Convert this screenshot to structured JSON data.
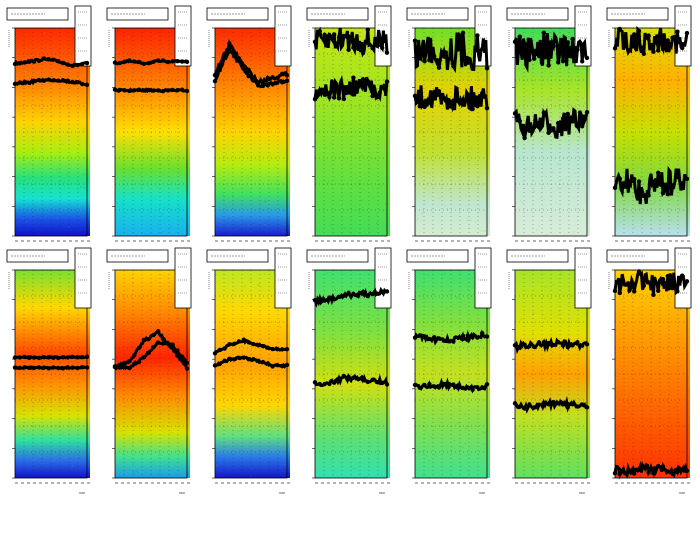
{
  "footer_text": "",
  "chart_data": [
    {
      "type": "heatmap",
      "colormap": "rainbow",
      "grid": true,
      "row": 0,
      "col": 0,
      "gradient": [
        [
          0,
          "#ff2800"
        ],
        [
          0.25,
          "#ff7a00"
        ],
        [
          0.45,
          "#ffd200"
        ],
        [
          0.6,
          "#a8ee10"
        ],
        [
          0.72,
          "#28e07a"
        ],
        [
          0.82,
          "#15e2d2"
        ],
        [
          0.92,
          "#1a52e6"
        ],
        [
          1,
          "#1010c8"
        ]
      ],
      "series": [
        {
          "values": [
            0.17,
            0.16,
            0.15,
            0.16,
            0.18,
            0.17
          ],
          "noise": 0.005
        },
        {
          "values": [
            0.27,
            0.26,
            0.25,
            0.25,
            0.26,
            0.27
          ],
          "noise": 0.005
        }
      ]
    },
    {
      "type": "heatmap",
      "colormap": "rainbow",
      "grid": true,
      "row": 0,
      "col": 1,
      "gradient": [
        [
          0,
          "#ff2200"
        ],
        [
          0.3,
          "#ff8a00"
        ],
        [
          0.5,
          "#ffe000"
        ],
        [
          0.68,
          "#66e030"
        ],
        [
          0.82,
          "#16e2c8"
        ],
        [
          1,
          "#18b0f0"
        ]
      ],
      "series": [
        {
          "values": [
            0.17,
            0.16,
            0.17,
            0.16,
            0.16,
            0.16
          ],
          "noise": 0.004
        },
        {
          "values": [
            0.3,
            0.3,
            0.3,
            0.3,
            0.3,
            0.3
          ],
          "noise": 0.004
        }
      ]
    },
    {
      "type": "heatmap",
      "colormap": "rainbow",
      "grid": true,
      "row": 0,
      "col": 2,
      "gradient": [
        [
          0,
          "#ff2a00"
        ],
        [
          0.3,
          "#ff8c00"
        ],
        [
          0.5,
          "#ffd400"
        ],
        [
          0.66,
          "#b4ec10"
        ],
        [
          0.8,
          "#40e060"
        ],
        [
          0.9,
          "#2a9ae8"
        ],
        [
          1,
          "#1a1ad0"
        ]
      ],
      "series": [
        {
          "values": [
            0.22,
            0.08,
            0.18,
            0.26,
            0.24,
            0.22
          ],
          "noise": 0.008
        },
        {
          "values": [
            0.25,
            0.1,
            0.2,
            0.28,
            0.27,
            0.25
          ],
          "noise": 0.008
        }
      ]
    },
    {
      "type": "heatmap",
      "colormap": "rainbow",
      "grid": true,
      "row": 0,
      "col": 3,
      "gradient": [
        [
          0,
          "#c4e614"
        ],
        [
          0.4,
          "#98e424"
        ],
        [
          0.75,
          "#60e040"
        ],
        [
          1,
          "#44dc58"
        ]
      ],
      "series": [
        {
          "values": [
            0.07,
            0.06,
            0.05,
            0.06,
            0.07,
            0.06
          ],
          "noise": 0.06
        },
        {
          "values": [
            0.3,
            0.29,
            0.3,
            0.28,
            0.29,
            0.3
          ],
          "noise": 0.05
        }
      ]
    },
    {
      "type": "heatmap",
      "colormap": "rainbow",
      "grid": true,
      "row": 0,
      "col": 4,
      "gradient": [
        [
          0,
          "#70e028"
        ],
        [
          0.3,
          "#e6d200"
        ],
        [
          0.6,
          "#c0e030"
        ],
        [
          0.85,
          "#bfe6d2"
        ],
        [
          1,
          "#d6ecd0"
        ]
      ],
      "series": [
        {
          "values": [
            0.12,
            0.1,
            0.12,
            0.1,
            0.12,
            0.11
          ],
          "noise": 0.09
        },
        {
          "values": [
            0.34,
            0.32,
            0.35,
            0.33,
            0.34,
            0.33
          ],
          "noise": 0.06
        }
      ]
    },
    {
      "type": "heatmap",
      "colormap": "rainbow",
      "grid": true,
      "row": 0,
      "col": 5,
      "gradient": [
        [
          0,
          "#40dc58"
        ],
        [
          0.3,
          "#a8e428"
        ],
        [
          0.6,
          "#b8e6d0"
        ],
        [
          1,
          "#d8ecd8"
        ]
      ],
      "series": [
        {
          "values": [
            0.1,
            0.12,
            0.1,
            0.11,
            0.1,
            0.12
          ],
          "noise": 0.08
        },
        {
          "values": [
            0.45,
            0.48,
            0.46,
            0.47,
            0.45,
            0.46
          ],
          "noise": 0.06
        }
      ]
    },
    {
      "type": "heatmap",
      "colormap": "rainbow",
      "grid": true,
      "row": 0,
      "col": 6,
      "gradient": [
        [
          0,
          "#d8e400"
        ],
        [
          0.25,
          "#ffb000"
        ],
        [
          0.5,
          "#c6e000"
        ],
        [
          0.75,
          "#80d840"
        ],
        [
          1,
          "#b8e0f0"
        ]
      ],
      "series": [
        {
          "values": [
            0.05,
            0.06,
            0.07,
            0.05,
            0.06,
            0.08
          ],
          "noise": 0.06
        },
        {
          "values": [
            0.78,
            0.74,
            0.8,
            0.72,
            0.76,
            0.7
          ],
          "noise": 0.07
        }
      ]
    },
    {
      "type": "heatmap",
      "colormap": "rainbow",
      "grid": true,
      "row": 1,
      "col": 0,
      "gradient": [
        [
          0,
          "#7ae030"
        ],
        [
          0.18,
          "#ffd800"
        ],
        [
          0.4,
          "#ff4a00"
        ],
        [
          0.55,
          "#ff9000"
        ],
        [
          0.7,
          "#d8e200"
        ],
        [
          0.82,
          "#30e0a0"
        ],
        [
          0.92,
          "#2a6ae8"
        ],
        [
          1,
          "#1212c8"
        ]
      ],
      "series": [
        {
          "values": [
            0.42,
            0.42,
            0.42,
            0.42,
            0.42,
            0.42
          ],
          "noise": 0.003
        },
        {
          "values": [
            0.47,
            0.47,
            0.47,
            0.47,
            0.47,
            0.47
          ],
          "noise": 0.003
        }
      ]
    },
    {
      "type": "heatmap",
      "colormap": "rainbow",
      "grid": true,
      "row": 1,
      "col": 1,
      "gradient": [
        [
          0,
          "#ffd200"
        ],
        [
          0.2,
          "#ff8a00"
        ],
        [
          0.42,
          "#ff2400"
        ],
        [
          0.6,
          "#ff8800"
        ],
        [
          0.78,
          "#d8e200"
        ],
        [
          0.9,
          "#40e090"
        ],
        [
          1,
          "#1a9ae8"
        ]
      ],
      "series": [
        {
          "values": [
            0.47,
            0.44,
            0.34,
            0.3,
            0.38,
            0.47
          ],
          "noise": 0.006
        },
        {
          "values": [
            0.46,
            0.47,
            0.42,
            0.35,
            0.36,
            0.45
          ],
          "noise": 0.006
        }
      ]
    },
    {
      "type": "heatmap",
      "colormap": "rainbow",
      "grid": true,
      "row": 1,
      "col": 2,
      "gradient": [
        [
          0,
          "#bce822"
        ],
        [
          0.2,
          "#ffd800"
        ],
        [
          0.45,
          "#ffa000"
        ],
        [
          0.65,
          "#ffd600"
        ],
        [
          0.8,
          "#60e080"
        ],
        [
          0.9,
          "#2a7ae8"
        ],
        [
          1,
          "#1414c8"
        ]
      ],
      "series": [
        {
          "values": [
            0.4,
            0.36,
            0.34,
            0.36,
            0.38,
            0.38
          ],
          "noise": 0.005
        },
        {
          "values": [
            0.46,
            0.43,
            0.42,
            0.44,
            0.46,
            0.46
          ],
          "noise": 0.005
        }
      ]
    },
    {
      "type": "heatmap",
      "colormap": "rainbow",
      "grid": true,
      "row": 1,
      "col": 3,
      "gradient": [
        [
          0,
          "#40e070"
        ],
        [
          0.3,
          "#80e040"
        ],
        [
          0.55,
          "#d0e010"
        ],
        [
          0.8,
          "#60e070"
        ],
        [
          1,
          "#30e0b0"
        ]
      ],
      "series": [
        {
          "values": [
            0.15,
            0.14,
            0.12,
            0.12,
            0.11,
            0.1
          ],
          "noise": 0.012
        },
        {
          "values": [
            0.55,
            0.54,
            0.52,
            0.52,
            0.53,
            0.54
          ],
          "noise": 0.012
        }
      ]
    },
    {
      "type": "heatmap",
      "colormap": "rainbow",
      "grid": true,
      "row": 1,
      "col": 4,
      "gradient": [
        [
          0,
          "#40e070"
        ],
        [
          0.25,
          "#80e040"
        ],
        [
          0.5,
          "#c4e020"
        ],
        [
          0.75,
          "#80e050"
        ],
        [
          1,
          "#40e090"
        ]
      ],
      "series": [
        {
          "values": [
            0.32,
            0.33,
            0.34,
            0.33,
            0.32,
            0.31
          ],
          "noise": 0.012
        },
        {
          "values": [
            0.56,
            0.56,
            0.55,
            0.56,
            0.57,
            0.56
          ],
          "noise": 0.012
        }
      ]
    },
    {
      "type": "heatmap",
      "colormap": "rainbow",
      "grid": true,
      "row": 1,
      "col": 5,
      "gradient": [
        [
          0,
          "#a8e428"
        ],
        [
          0.3,
          "#e0e000"
        ],
        [
          0.5,
          "#ffa000"
        ],
        [
          0.7,
          "#c0e020"
        ],
        [
          1,
          "#60e060"
        ]
      ],
      "series": [
        {
          "values": [
            0.37,
            0.36,
            0.36,
            0.35,
            0.36,
            0.36
          ],
          "noise": 0.014
        },
        {
          "values": [
            0.65,
            0.66,
            0.65,
            0.64,
            0.65,
            0.65
          ],
          "noise": 0.014
        }
      ]
    },
    {
      "type": "heatmap",
      "colormap": "rainbow",
      "grid": true,
      "row": 1,
      "col": 6,
      "gradient": [
        [
          0,
          "#ffd400"
        ],
        [
          0.3,
          "#ffa000"
        ],
        [
          0.6,
          "#ff7000"
        ],
        [
          0.85,
          "#ff4a00"
        ],
        [
          1,
          "#ff3000"
        ]
      ],
      "series": [
        {
          "values": [
            0.06,
            0.07,
            0.05,
            0.08,
            0.06,
            0.07
          ],
          "noise": 0.05
        },
        {
          "values": [
            0.96,
            0.97,
            0.95,
            0.96,
            0.97,
            0.96
          ],
          "noise": 0.02
        }
      ]
    }
  ]
}
